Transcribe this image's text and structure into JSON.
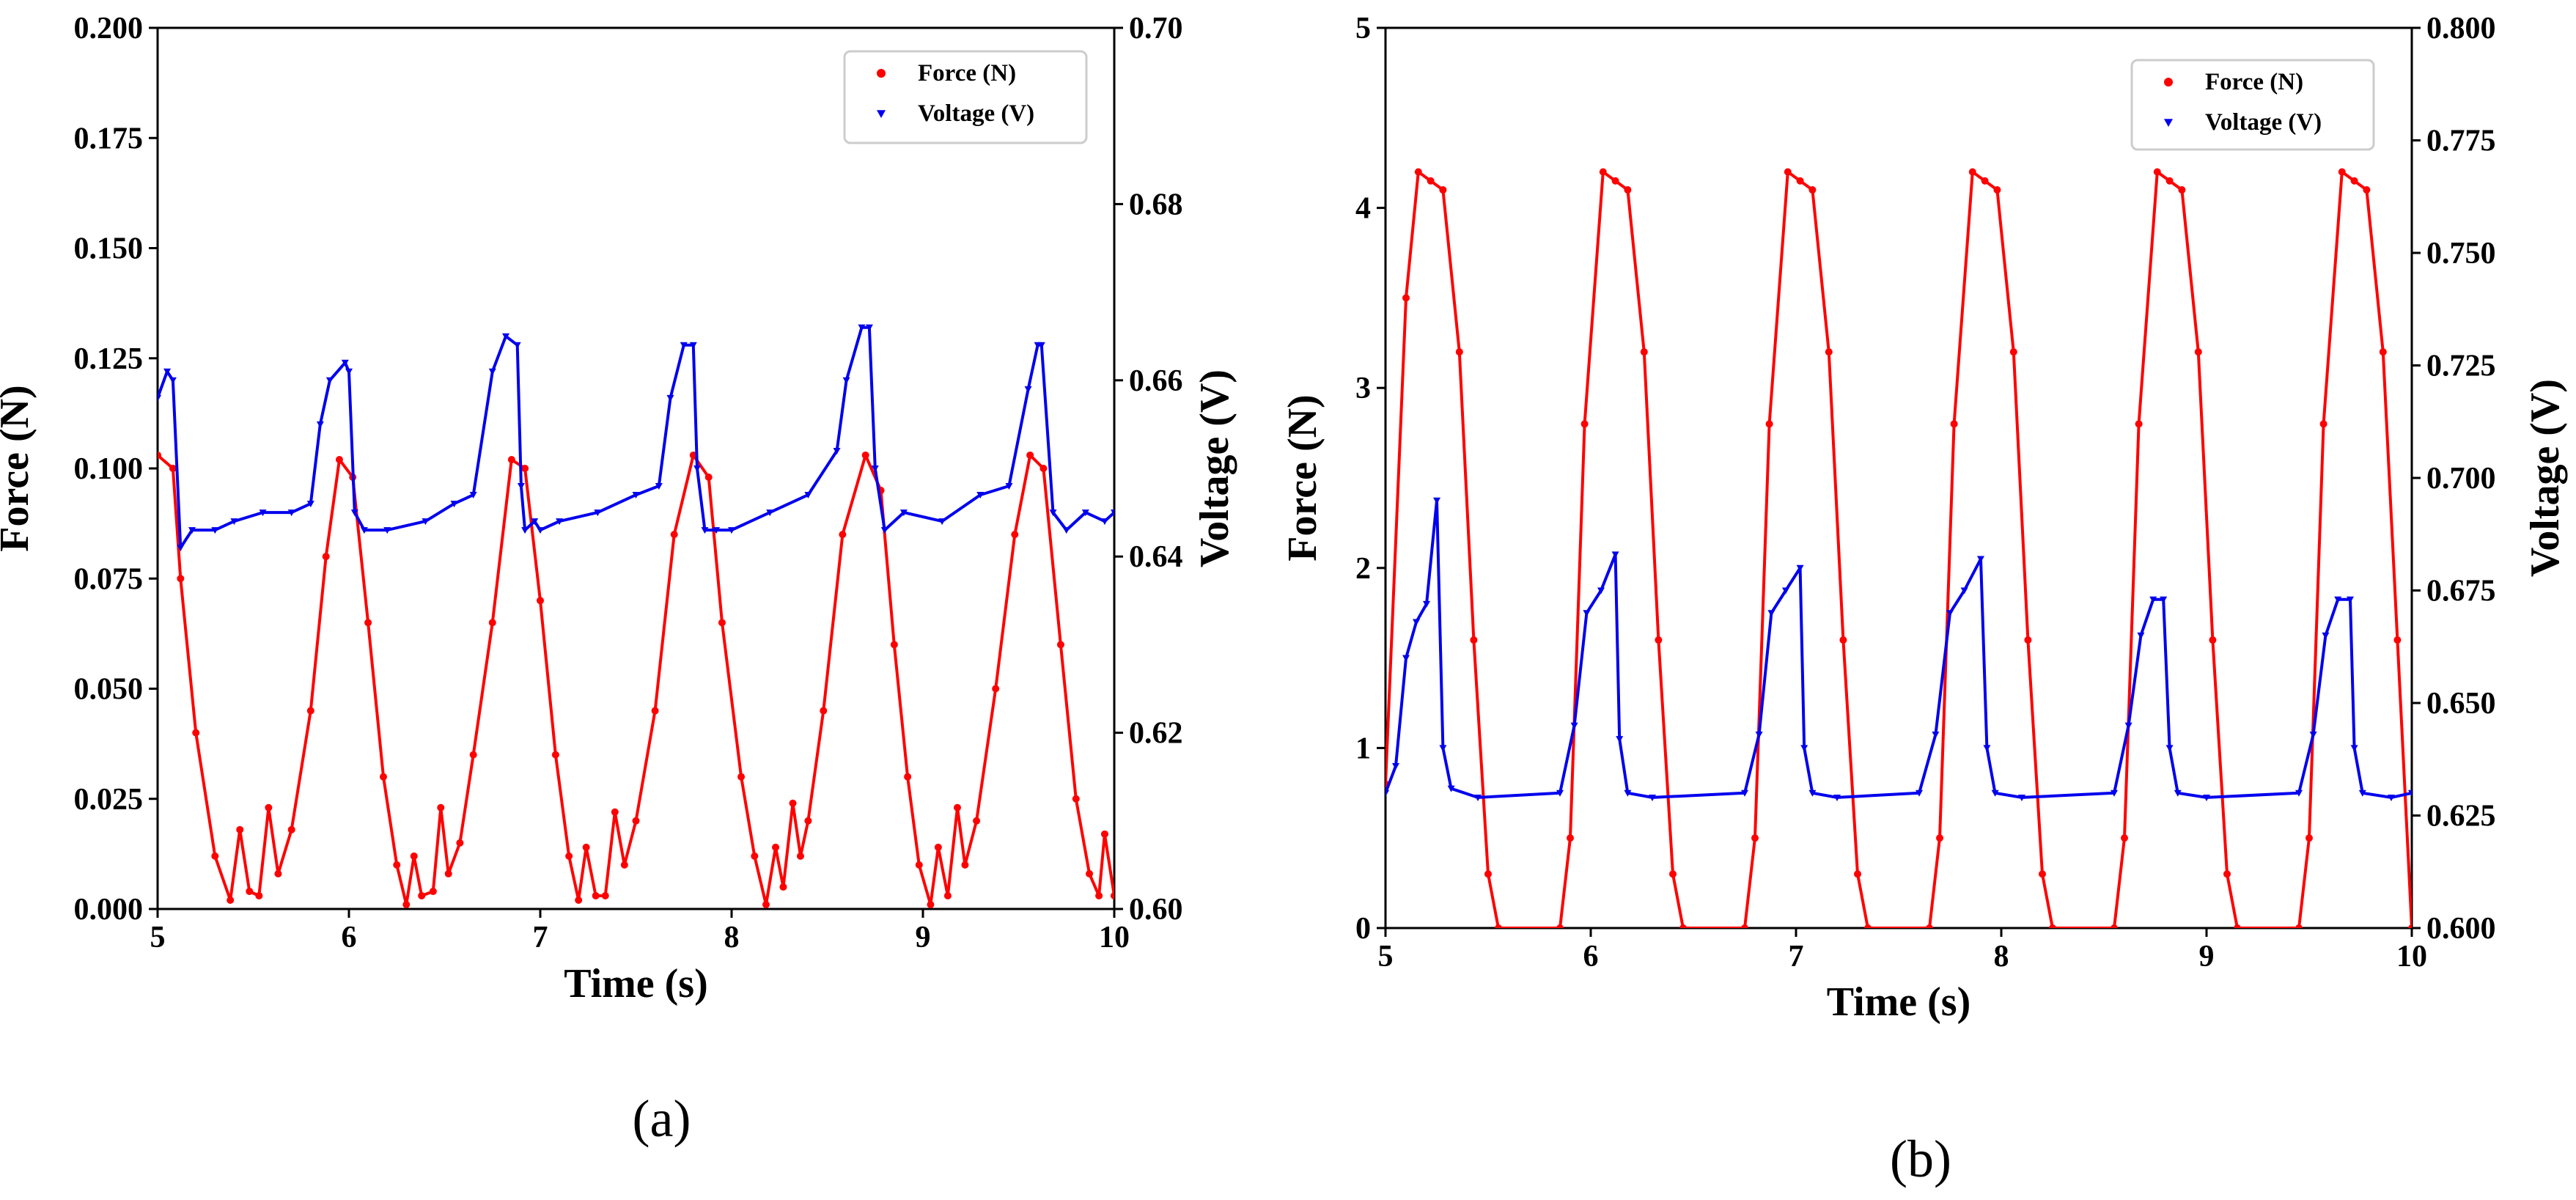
{
  "colors": {
    "force": "#ff0000",
    "voltage": "#0000ee",
    "axis": "#000000",
    "legend_border": "#cccccc"
  },
  "chart_data": [
    {
      "panel": "a",
      "type": "line",
      "xlabel": "Time (s)",
      "ylabel_left": "Force (N)",
      "ylabel_right": "Voltage (V)",
      "xlim": [
        5,
        10
      ],
      "ylim_left": [
        0,
        0.2
      ],
      "ylim_right": [
        0.6,
        0.7
      ],
      "xticks": [
        "5",
        "6",
        "7",
        "8",
        "9",
        "10"
      ],
      "yticks_left": [
        "0.000",
        "0.025",
        "0.050",
        "0.075",
        "0.100",
        "0.125",
        "0.150",
        "0.175",
        "0.200"
      ],
      "yticks_right": [
        "0.60",
        "0.62",
        "0.64",
        "0.66",
        "0.68",
        "0.70"
      ],
      "legend": [
        "Force (N)",
        "Voltage (V)"
      ],
      "legend_loc": "upper right",
      "series": [
        {
          "name": "Force (N)",
          "axis": "left",
          "marker": "dot",
          "x": [
            5.0,
            5.08,
            5.12,
            5.2,
            5.3,
            5.38,
            5.43,
            5.48,
            5.53,
            5.58,
            5.63,
            5.7,
            5.8,
            5.88,
            5.95,
            6.02,
            6.1,
            6.18,
            6.25,
            6.3,
            6.34,
            6.38,
            6.44,
            6.48,
            6.52,
            6.58,
            6.65,
            6.75,
            6.85,
            6.92,
            7.0,
            7.08,
            7.15,
            7.2,
            7.24,
            7.29,
            7.34,
            7.39,
            7.44,
            7.5,
            7.6,
            7.7,
            7.8,
            7.88,
            7.95,
            8.05,
            8.12,
            8.18,
            8.23,
            8.27,
            8.32,
            8.36,
            8.4,
            8.48,
            8.58,
            8.7,
            8.78,
            8.85,
            8.92,
            8.98,
            9.04,
            9.08,
            9.13,
            9.18,
            9.22,
            9.28,
            9.38,
            9.48,
            9.56,
            9.63,
            9.72,
            9.8,
            9.87,
            9.92,
            9.95,
            10.0
          ],
          "y": [
            0.103,
            0.1,
            0.075,
            0.04,
            0.012,
            0.002,
            0.018,
            0.004,
            0.003,
            0.023,
            0.008,
            0.018,
            0.045,
            0.08,
            0.102,
            0.098,
            0.065,
            0.03,
            0.01,
            0.001,
            0.012,
            0.003,
            0.004,
            0.023,
            0.008,
            0.015,
            0.035,
            0.065,
            0.102,
            0.1,
            0.07,
            0.035,
            0.012,
            0.002,
            0.014,
            0.003,
            0.003,
            0.022,
            0.01,
            0.02,
            0.045,
            0.085,
            0.103,
            0.098,
            0.065,
            0.03,
            0.012,
            0.001,
            0.014,
            0.005,
            0.024,
            0.012,
            0.02,
            0.045,
            0.085,
            0.103,
            0.095,
            0.06,
            0.03,
            0.01,
            0.001,
            0.014,
            0.003,
            0.023,
            0.01,
            0.02,
            0.05,
            0.085,
            0.103,
            0.1,
            0.06,
            0.025,
            0.008,
            0.003,
            0.017,
            0.003
          ]
        },
        {
          "name": "Voltage (V)",
          "axis": "right",
          "marker": "triangle",
          "x": [
            5.0,
            5.05,
            5.08,
            5.12,
            5.18,
            5.3,
            5.4,
            5.55,
            5.7,
            5.8,
            5.85,
            5.9,
            5.98,
            6.0,
            6.03,
            6.08,
            6.2,
            6.4,
            6.55,
            6.65,
            6.75,
            6.82,
            6.88,
            6.9,
            6.92,
            6.97,
            7.0,
            7.1,
            7.3,
            7.5,
            7.62,
            7.68,
            7.75,
            7.8,
            7.82,
            7.86,
            7.92,
            8.0,
            8.2,
            8.4,
            8.55,
            8.6,
            8.68,
            8.72,
            8.75,
            8.8,
            8.9,
            9.1,
            9.3,
            9.45,
            9.55,
            9.6,
            9.62,
            9.68,
            9.75,
            9.85,
            9.95,
            10.0
          ],
          "y": [
            0.658,
            0.661,
            0.66,
            0.641,
            0.643,
            0.643,
            0.644,
            0.645,
            0.645,
            0.646,
            0.655,
            0.66,
            0.662,
            0.661,
            0.645,
            0.643,
            0.643,
            0.644,
            0.646,
            0.647,
            0.661,
            0.665,
            0.664,
            0.648,
            0.643,
            0.644,
            0.643,
            0.644,
            0.645,
            0.647,
            0.648,
            0.658,
            0.664,
            0.664,
            0.65,
            0.643,
            0.643,
            0.643,
            0.645,
            0.647,
            0.652,
            0.66,
            0.666,
            0.666,
            0.65,
            0.643,
            0.645,
            0.644,
            0.647,
            0.648,
            0.659,
            0.664,
            0.664,
            0.645,
            0.643,
            0.645,
            0.644,
            0.645
          ]
        }
      ],
      "panel_label": "(a)",
      "panel_letter": "a"
    },
    {
      "panel": "b",
      "type": "line",
      "xlabel": "Time (s)",
      "ylabel_left": "Force (N)",
      "ylabel_right": "Voltage (V)",
      "xlim": [
        5,
        10
      ],
      "ylim_left": [
        0,
        5
      ],
      "ylim_right": [
        0.6,
        0.8
      ],
      "xticks": [
        "5",
        "6",
        "7",
        "8",
        "9",
        "10"
      ],
      "yticks_left": [
        "0",
        "1",
        "2",
        "3",
        "4",
        "5"
      ],
      "yticks_right": [
        "0.600",
        "0.625",
        "0.650",
        "0.675",
        "0.700",
        "0.725",
        "0.750",
        "0.775",
        "0.800"
      ],
      "legend": [
        "Force (N)",
        "Voltage (V)"
      ],
      "legend_loc": "upper right",
      "series": [
        {
          "name": "Force (N)",
          "axis": "left",
          "marker": "dot",
          "x": [
            5.0,
            5.1,
            5.16,
            5.22,
            5.28,
            5.36,
            5.43,
            5.5,
            5.55,
            5.85,
            5.9,
            5.97,
            6.06,
            6.12,
            6.18,
            6.26,
            6.33,
            6.4,
            6.45,
            6.75,
            6.8,
            6.87,
            6.96,
            7.02,
            7.08,
            7.16,
            7.23,
            7.3,
            7.35,
            7.65,
            7.7,
            7.77,
            7.86,
            7.92,
            7.98,
            8.06,
            8.13,
            8.2,
            8.25,
            8.55,
            8.6,
            8.67,
            8.76,
            8.82,
            8.88,
            8.96,
            9.03,
            9.1,
            9.15,
            9.45,
            9.5,
            9.57,
            9.66,
            9.72,
            9.78,
            9.86,
            9.93,
            10.0
          ],
          "y": [
            0.8,
            3.5,
            4.2,
            4.15,
            4.1,
            3.2,
            1.6,
            0.3,
            0.0,
            0.0,
            0.5,
            2.8,
            4.2,
            4.15,
            4.1,
            3.2,
            1.6,
            0.3,
            0.0,
            0.0,
            0.5,
            2.8,
            4.2,
            4.15,
            4.1,
            3.2,
            1.6,
            0.3,
            0.0,
            0.0,
            0.5,
            2.8,
            4.2,
            4.15,
            4.1,
            3.2,
            1.6,
            0.3,
            0.0,
            0.0,
            0.5,
            2.8,
            4.2,
            4.15,
            4.1,
            3.2,
            1.6,
            0.3,
            0.0,
            0.0,
            0.5,
            2.8,
            4.2,
            4.15,
            4.1,
            3.2,
            1.6,
            0.0
          ]
        },
        {
          "name": "Voltage (V)",
          "axis": "right",
          "marker": "triangle",
          "x": [
            5.0,
            5.05,
            5.1,
            5.15,
            5.2,
            5.25,
            5.28,
            5.32,
            5.45,
            5.85,
            5.92,
            5.98,
            6.05,
            6.12,
            6.14,
            6.18,
            6.3,
            6.75,
            6.82,
            6.88,
            6.95,
            7.02,
            7.04,
            7.08,
            7.2,
            7.6,
            7.68,
            7.75,
            7.82,
            7.9,
            7.93,
            7.97,
            8.1,
            8.55,
            8.62,
            8.68,
            8.74,
            8.79,
            8.82,
            8.86,
            9.0,
            9.45,
            9.52,
            9.58,
            9.64,
            9.7,
            9.72,
            9.76,
            9.9,
            10.0
          ],
          "y": [
            0.63,
            0.636,
            0.66,
            0.668,
            0.672,
            0.695,
            0.64,
            0.631,
            0.629,
            0.63,
            0.645,
            0.67,
            0.675,
            0.683,
            0.642,
            0.63,
            0.629,
            0.63,
            0.643,
            0.67,
            0.675,
            0.68,
            0.64,
            0.63,
            0.629,
            0.63,
            0.643,
            0.67,
            0.675,
            0.682,
            0.64,
            0.63,
            0.629,
            0.63,
            0.645,
            0.665,
            0.673,
            0.673,
            0.64,
            0.63,
            0.629,
            0.63,
            0.643,
            0.665,
            0.673,
            0.673,
            0.64,
            0.63,
            0.629,
            0.63
          ]
        }
      ],
      "panel_label": "(b)",
      "panel_letter": "b"
    }
  ]
}
